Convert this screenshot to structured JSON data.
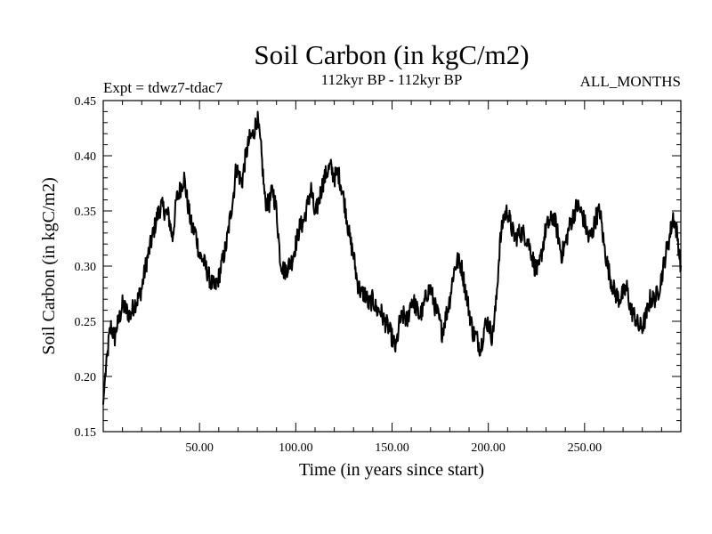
{
  "chart_data": {
    "type": "line",
    "title": "Soil Carbon (in kgC/m2)",
    "left_label": "Expt = tdwz7-tdac7",
    "center_label": "112kyr BP - 112kyr BP",
    "right_label": "ALL_MONTHS",
    "xlabel": "Time (in years since start)",
    "ylabel": "Soil Carbon (in kgC/m2)",
    "xlim": [
      0,
      300
    ],
    "ylim": [
      0.15,
      0.45
    ],
    "x_major_ticks": [
      50,
      100,
      150,
      200,
      250
    ],
    "x_tick_labels": [
      "50.00",
      "100.00",
      "150.00",
      "200.00",
      "250.00"
    ],
    "y_major_ticks": [
      0.15,
      0.2,
      0.25,
      0.3,
      0.35,
      0.4,
      0.45
    ],
    "y_tick_labels": [
      "0.15",
      "0.20",
      "0.25",
      "0.30",
      "0.35",
      "0.40",
      "0.45"
    ],
    "series": [
      {
        "name": "Soil Carbon",
        "x": [
          0,
          1,
          2,
          3,
          4,
          5,
          6,
          7,
          8,
          10,
          12,
          14,
          16,
          18,
          20,
          22,
          24,
          26,
          28,
          30,
          32,
          34,
          36,
          38,
          40,
          42,
          44,
          46,
          48,
          50,
          52,
          54,
          56,
          58,
          60,
          62,
          64,
          66,
          68,
          69,
          70,
          72,
          74,
          76,
          78,
          80,
          82,
          84,
          86,
          88,
          90,
          92,
          94,
          96,
          98,
          100,
          102,
          104,
          106,
          108,
          110,
          112,
          114,
          116,
          118,
          120,
          122,
          124,
          126,
          128,
          130,
          132,
          134,
          136,
          138,
          140,
          142,
          144,
          146,
          148,
          150,
          152,
          154,
          156,
          158,
          160,
          162,
          164,
          166,
          168,
          170,
          172,
          174,
          176,
          178,
          180,
          182,
          184,
          186,
          188,
          190,
          192,
          194,
          196,
          198,
          200,
          202,
          204,
          206,
          208,
          210,
          212,
          214,
          216,
          218,
          220,
          222,
          224,
          226,
          228,
          230,
          232,
          234,
          236,
          238,
          240,
          242,
          244,
          246,
          248,
          250,
          252,
          254,
          256,
          258,
          260,
          262,
          264,
          266,
          268,
          270,
          272,
          274,
          276,
          278,
          280,
          282,
          284,
          286,
          288,
          290,
          292,
          294,
          296,
          298,
          300
        ],
        "values": [
          0.175,
          0.2,
          0.215,
          0.235,
          0.245,
          0.24,
          0.235,
          0.245,
          0.25,
          0.265,
          0.26,
          0.255,
          0.265,
          0.27,
          0.28,
          0.3,
          0.315,
          0.33,
          0.345,
          0.355,
          0.35,
          0.345,
          0.325,
          0.36,
          0.37,
          0.38,
          0.355,
          0.335,
          0.33,
          0.31,
          0.305,
          0.295,
          0.285,
          0.28,
          0.29,
          0.305,
          0.32,
          0.345,
          0.37,
          0.39,
          0.385,
          0.375,
          0.4,
          0.415,
          0.42,
          0.435,
          0.405,
          0.36,
          0.355,
          0.37,
          0.35,
          0.305,
          0.295,
          0.3,
          0.305,
          0.32,
          0.335,
          0.34,
          0.355,
          0.37,
          0.345,
          0.36,
          0.375,
          0.385,
          0.39,
          0.38,
          0.385,
          0.37,
          0.35,
          0.325,
          0.31,
          0.285,
          0.275,
          0.275,
          0.265,
          0.27,
          0.26,
          0.26,
          0.25,
          0.245,
          0.235,
          0.225,
          0.25,
          0.255,
          0.25,
          0.27,
          0.265,
          0.255,
          0.26,
          0.275,
          0.28,
          0.265,
          0.255,
          0.24,
          0.255,
          0.27,
          0.295,
          0.305,
          0.3,
          0.28,
          0.26,
          0.24,
          0.235,
          0.225,
          0.245,
          0.25,
          0.235,
          0.265,
          0.32,
          0.345,
          0.35,
          0.335,
          0.325,
          0.33,
          0.33,
          0.325,
          0.315,
          0.3,
          0.295,
          0.315,
          0.335,
          0.34,
          0.345,
          0.33,
          0.31,
          0.32,
          0.335,
          0.345,
          0.355,
          0.35,
          0.34,
          0.325,
          0.33,
          0.345,
          0.35,
          0.32,
          0.3,
          0.285,
          0.275,
          0.27,
          0.275,
          0.28,
          0.26,
          0.255,
          0.245,
          0.245,
          0.255,
          0.27,
          0.27,
          0.275,
          0.29,
          0.31,
          0.325,
          0.345,
          0.33,
          0.3
        ]
      }
    ]
  }
}
